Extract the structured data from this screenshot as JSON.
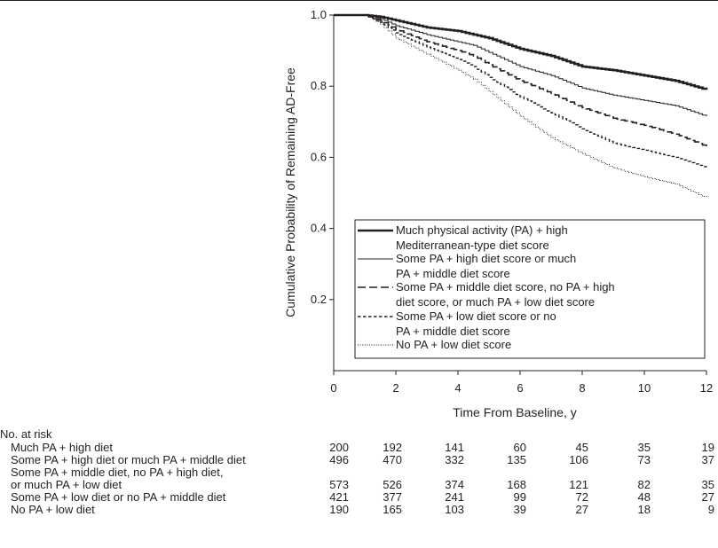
{
  "chart_data": {
    "type": "line",
    "ylabel": "Cumulative Probability of Remaining AD-Free",
    "xlabel": "Time From Baseline, y",
    "xlim": [
      0,
      12
    ],
    "ylim": [
      0,
      1.0
    ],
    "x_ticks": [
      0,
      2,
      4,
      6,
      8,
      10,
      12
    ],
    "y_ticks": [
      0.2,
      0.4,
      0.6,
      0.8,
      1.0
    ],
    "y_tick_labels": [
      "0.2",
      "0.4",
      "0.6",
      "0.8",
      "1.0"
    ],
    "legend_position": "lower-right",
    "series": [
      {
        "legend": [
          "Much physical activity (PA) + high",
          "Mediterranean-type diet score"
        ],
        "style": "thick-solid",
        "points": [
          [
            0,
            1.0
          ],
          [
            1.0,
            1.0
          ],
          [
            1.5,
            0.995
          ],
          [
            2,
            0.985
          ],
          [
            3,
            0.965
          ],
          [
            4,
            0.955
          ],
          [
            4.5,
            0.945
          ],
          [
            5,
            0.935
          ],
          [
            6,
            0.905
          ],
          [
            7,
            0.885
          ],
          [
            8,
            0.855
          ],
          [
            9,
            0.845
          ],
          [
            10,
            0.83
          ],
          [
            11,
            0.815
          ],
          [
            12,
            0.79
          ]
        ]
      },
      {
        "legend": [
          "Some PA + high diet score or much",
          "PA + middle diet score"
        ],
        "style": "thin-solid",
        "points": [
          [
            0,
            1.0
          ],
          [
            1.0,
            1.0
          ],
          [
            1.5,
            0.99
          ],
          [
            2,
            0.97
          ],
          [
            3,
            0.945
          ],
          [
            4,
            0.925
          ],
          [
            4.5,
            0.915
          ],
          [
            5,
            0.895
          ],
          [
            6,
            0.855
          ],
          [
            7,
            0.83
          ],
          [
            8,
            0.795
          ],
          [
            9,
            0.775
          ],
          [
            10,
            0.76
          ],
          [
            11,
            0.745
          ],
          [
            12,
            0.715
          ]
        ]
      },
      {
        "legend": [
          "Some PA + middle diet score, no PA + high",
          "diet score, or much PA + low diet score"
        ],
        "style": "long-dash",
        "points": [
          [
            0,
            1.0
          ],
          [
            1.0,
            1.0
          ],
          [
            1.5,
            0.985
          ],
          [
            2,
            0.96
          ],
          [
            3,
            0.925
          ],
          [
            4,
            0.9
          ],
          [
            4.5,
            0.885
          ],
          [
            5,
            0.86
          ],
          [
            6,
            0.815
          ],
          [
            7,
            0.78
          ],
          [
            8,
            0.74
          ],
          [
            9,
            0.71
          ],
          [
            10,
            0.69
          ],
          [
            11,
            0.665
          ],
          [
            12,
            0.63
          ]
        ]
      },
      {
        "legend": [
          "Some PA + low diet score or no",
          "PA + middle diet score"
        ],
        "style": "short-dash",
        "points": [
          [
            0,
            1.0
          ],
          [
            1.0,
            1.0
          ],
          [
            1.5,
            0.98
          ],
          [
            2,
            0.95
          ],
          [
            3,
            0.91
          ],
          [
            4,
            0.875
          ],
          [
            4.5,
            0.855
          ],
          [
            5,
            0.825
          ],
          [
            6,
            0.77
          ],
          [
            7,
            0.725
          ],
          [
            8,
            0.68
          ],
          [
            9,
            0.64
          ],
          [
            10,
            0.62
          ],
          [
            11,
            0.6
          ],
          [
            12,
            0.57
          ]
        ]
      },
      {
        "legend": [
          "No PA + low diet score"
        ],
        "style": "dotted",
        "points": [
          [
            0,
            1.0
          ],
          [
            1.0,
            1.0
          ],
          [
            1.5,
            0.975
          ],
          [
            2,
            0.935
          ],
          [
            3,
            0.89
          ],
          [
            4,
            0.845
          ],
          [
            4.5,
            0.82
          ],
          [
            5,
            0.785
          ],
          [
            6,
            0.715
          ],
          [
            7,
            0.655
          ],
          [
            8,
            0.61
          ],
          [
            9,
            0.57
          ],
          [
            10,
            0.545
          ],
          [
            11,
            0.525
          ],
          [
            12,
            0.485
          ]
        ]
      }
    ]
  },
  "risk_table": {
    "title": "No. at risk",
    "rows": [
      {
        "label": [
          "Much PA + high diet"
        ],
        "values": [
          "200",
          "192",
          "141",
          "60",
          "45",
          "35",
          "19"
        ]
      },
      {
        "label": [
          "Some PA + high diet or much PA + middle diet"
        ],
        "values": [
          "496",
          "470",
          "332",
          "135",
          "106",
          "73",
          "37"
        ]
      },
      {
        "label": [
          "Some PA + middle diet, no PA + high diet,",
          "or much PA + low diet"
        ],
        "values": [
          "573",
          "526",
          "374",
          "168",
          "121",
          "82",
          "35"
        ]
      },
      {
        "label": [
          "Some PA + low diet or no PA + middle diet"
        ],
        "values": [
          "421",
          "377",
          "241",
          "99",
          "72",
          "48",
          "27"
        ]
      },
      {
        "label": [
          "No PA + low diet"
        ],
        "values": [
          "190",
          "165",
          "103",
          "39",
          "27",
          "18",
          "9"
        ]
      }
    ]
  }
}
